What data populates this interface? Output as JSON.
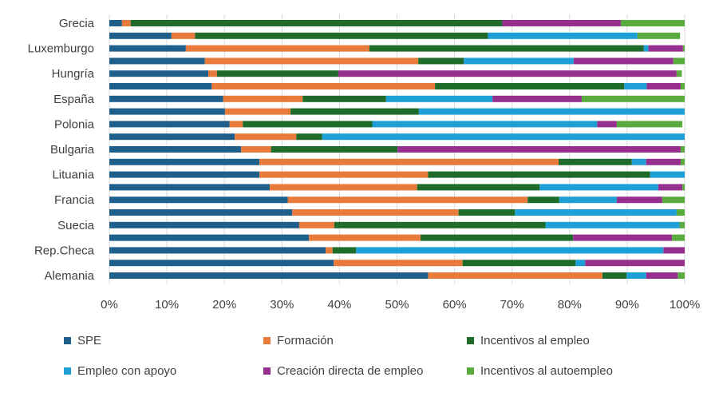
{
  "chart_data": {
    "type": "bar",
    "orientation": "horizontal",
    "stacked": "percent",
    "categories": [
      "Grecia",
      "",
      "Luxemburgo",
      "",
      "Hungría",
      "",
      "España",
      "",
      "Polonia",
      "",
      "Bulgaria",
      "",
      "Lituania",
      "",
      "Francia",
      "",
      "Suecia",
      "",
      "Rep.Checa",
      "",
      "Alemania"
    ],
    "xlim": [
      0,
      100
    ],
    "xticks": [
      "0%",
      "10%",
      "20%",
      "30%",
      "40%",
      "50%",
      "60%",
      "70%",
      "80%",
      "90%",
      "100%"
    ],
    "grid": "vertical",
    "legend": "bottom",
    "series": [
      {
        "name": "SPE",
        "color": "#1f5f8b",
        "values": [
          2.2,
          10.8,
          13.3,
          16.6,
          17.2,
          17.8,
          19.8,
          20.1,
          20.9,
          21.8,
          22.9,
          26.1,
          26.1,
          27.9,
          31.0,
          31.8,
          33.0,
          34.7,
          37.6,
          39.0,
          55.4
        ]
      },
      {
        "name": "Formación",
        "color": "#e87b3c",
        "values": [
          1.5,
          4.1,
          31.9,
          37.1,
          1.5,
          38.8,
          13.8,
          11.4,
          2.3,
          10.7,
          5.2,
          52.0,
          29.3,
          25.6,
          41.7,
          28.9,
          6.1,
          19.4,
          1.2,
          22.4,
          30.3
        ]
      },
      {
        "name": "Incentivos al empleo",
        "color": "#1e6b2a",
        "values": [
          64.6,
          50.9,
          47.7,
          7.9,
          21.1,
          32.9,
          14.5,
          22.3,
          22.5,
          4.5,
          22.0,
          12.7,
          38.6,
          21.3,
          5.5,
          9.8,
          36.7,
          26.5,
          4.1,
          19.6,
          4.2
        ]
      },
      {
        "name": "Empleo con apoyo",
        "color": "#1ea0d6",
        "values": [
          0,
          26.0,
          0.8,
          19.1,
          0,
          3.9,
          18.5,
          46.2,
          39.1,
          63.0,
          0,
          2.5,
          6.0,
          20.6,
          10.0,
          28.1,
          23.3,
          0,
          53.4,
          1.7,
          3.4
        ]
      },
      {
        "name": "Creación directa de empleo",
        "color": "#962f8e",
        "values": [
          20.6,
          0,
          6.0,
          17.3,
          58.8,
          5.9,
          15.5,
          0,
          3.4,
          0,
          49.2,
          6.0,
          0,
          4.2,
          7.9,
          0,
          0,
          17.2,
          3.7,
          17.3,
          5.5
        ]
      },
      {
        "name": "Incentivos al autoempleo",
        "color": "#5aab3e",
        "values": [
          11.1,
          7.4,
          0.3,
          2.0,
          0.9,
          0.7,
          17.9,
          0,
          11.4,
          0,
          0.7,
          0.7,
          0,
          0.4,
          3.9,
          1.4,
          0.9,
          2.2,
          0,
          0,
          1.2
        ]
      }
    ]
  }
}
